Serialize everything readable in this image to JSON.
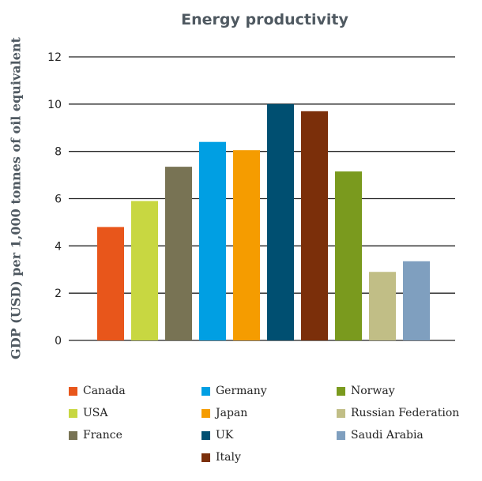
{
  "chart_data": {
    "type": "bar",
    "title": "Energy productivity",
    "ylabel": "GDP (USD) per 1,000 tonnes of oil equivalent",
    "xlabel": "",
    "ylim": [
      0,
      12
    ],
    "yticks": [
      0,
      2,
      4,
      6,
      8,
      10,
      12
    ],
    "grid": true,
    "legend_position": "bottom",
    "categories": [
      "Canada",
      "USA",
      "France",
      "Germany",
      "Japan",
      "UK",
      "Italy",
      "Norway",
      "Russian Federation",
      "Saudi Arabia"
    ],
    "values": [
      4.8,
      5.9,
      7.35,
      8.4,
      8.05,
      10.0,
      9.7,
      7.15,
      2.9,
      3.35
    ],
    "colors": [
      "#e8561b",
      "#c8d741",
      "#787354",
      "#009fe3",
      "#f59c00",
      "#004f71",
      "#7b2f0a",
      "#7a9a1e",
      "#c1be86",
      "#7f9fbf"
    ]
  }
}
